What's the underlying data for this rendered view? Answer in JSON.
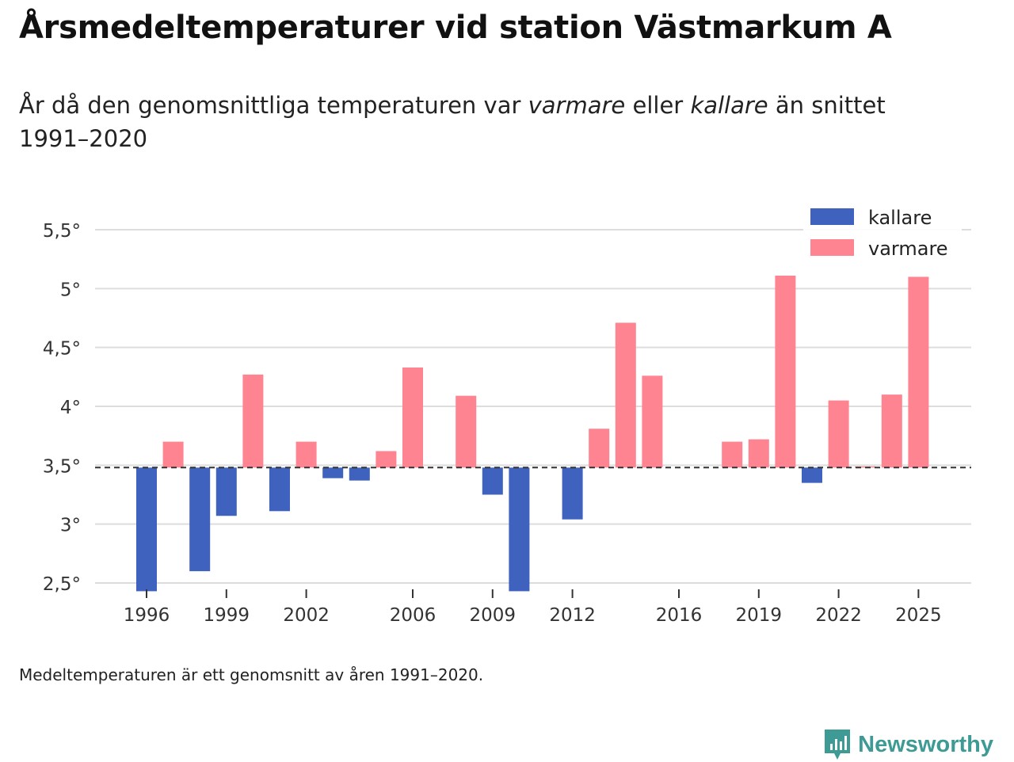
{
  "header": {
    "title": "Årsmedeltemperaturer vid station Västmarkum A",
    "subtitle_part1": "År då den genomsnittliga temperaturen var ",
    "subtitle_warm": "varmare",
    "subtitle_part2": " eller ",
    "subtitle_cold": "kallare",
    "subtitle_part3": " än snittet 1991–2020"
  },
  "footer": {
    "note": "Medeltemperaturen är ett genomsnitt av åren 1991–2020.",
    "brand": "Newsworthy"
  },
  "colors": {
    "cold": "#4062bf",
    "warm": "#ff8491",
    "grid": "#dddddd",
    "baseline": "#333333",
    "brand": "#3d9a94"
  },
  "chart_data": {
    "type": "bar",
    "title": "Årsmedeltemperaturer vid station Västmarkum A",
    "xlabel": "",
    "ylabel": "",
    "baseline": 3.48,
    "ylim": [
      2.5,
      5.5
    ],
    "yticks": [
      2.5,
      3,
      3.5,
      4,
      4.5,
      5,
      5.5
    ],
    "ytick_labels": [
      "2,5°",
      "3°",
      "3,5°",
      "4°",
      "4,5°",
      "5°",
      "5,5°"
    ],
    "xticks": [
      1996,
      1999,
      2002,
      2006,
      2009,
      2012,
      2016,
      2019,
      2022,
      2025
    ],
    "legend": {
      "position": "top-right",
      "entries": [
        "kallare",
        "varmare"
      ]
    },
    "series": [
      {
        "name": "temperatur",
        "years": [
          1996,
          1997,
          1998,
          1999,
          2000,
          2001,
          2002,
          2003,
          2004,
          2005,
          2006,
          2007,
          2008,
          2009,
          2010,
          2011,
          2012,
          2013,
          2014,
          2015,
          2016,
          2017,
          2018,
          2019,
          2020,
          2021,
          2022,
          2023,
          2024,
          2025
        ],
        "values": [
          2.43,
          3.7,
          2.6,
          3.07,
          4.27,
          3.11,
          3.7,
          3.39,
          3.37,
          3.62,
          4.33,
          null,
          4.09,
          3.25,
          2.43,
          null,
          3.04,
          3.81,
          4.71,
          4.26,
          null,
          null,
          3.7,
          3.72,
          5.11,
          3.35,
          4.05,
          3.49,
          4.1,
          5.1
        ]
      }
    ]
  }
}
